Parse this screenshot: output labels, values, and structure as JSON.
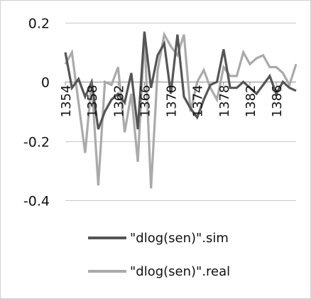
{
  "chart_data": {
    "type": "line",
    "title": "",
    "xlabel": "",
    "ylabel": "",
    "ylim": [
      -0.4,
      0.2
    ],
    "y_ticks": [
      "0.2",
      "0",
      "-0.2",
      "-0.4"
    ],
    "y_tick_values": [
      0.2,
      0,
      -0.2,
      -0.4
    ],
    "x_tick_labels": [
      "1354",
      "1358",
      "1362",
      "1366",
      "1370",
      "1374",
      "1378",
      "1382",
      "1386"
    ],
    "x_tick_values": [
      1354,
      1358,
      1362,
      1366,
      1370,
      1374,
      1378,
      1382,
      1386
    ],
    "grid": "horizontal",
    "legend_position": "bottom",
    "x": [
      1354,
      1355,
      1356,
      1357,
      1358,
      1359,
      1360,
      1361,
      1362,
      1363,
      1364,
      1365,
      1366,
      1367,
      1368,
      1369,
      1370,
      1371,
      1372,
      1373,
      1374,
      1375,
      1376,
      1377,
      1378,
      1379,
      1380,
      1381,
      1382,
      1383,
      1384,
      1385,
      1386,
      1387,
      1388,
      1389
    ],
    "series": [
      {
        "name": "\"dlog(sen)\".sim",
        "color": "#555555",
        "values": [
          0.1,
          -0.02,
          0.01,
          -0.05,
          0.0,
          -0.16,
          -0.1,
          -0.06,
          -0.04,
          -0.07,
          0.03,
          -0.16,
          0.17,
          -0.02,
          0.09,
          0.13,
          -0.04,
          0.16,
          -0.05,
          -0.09,
          -0.12,
          -0.06,
          -0.01,
          0.0,
          0.11,
          -0.02,
          -0.02,
          0.0,
          -0.02,
          -0.04,
          -0.01,
          0.02,
          -0.04,
          0.0,
          -0.02,
          -0.03
        ]
      },
      {
        "name": "\"dlog(sen)\".real",
        "color": "#aaaaaa",
        "values": [
          0.06,
          0.1,
          -0.07,
          -0.24,
          0.0,
          -0.35,
          0.0,
          -0.01,
          0.05,
          -0.17,
          -0.04,
          -0.27,
          0.16,
          -0.36,
          0.04,
          0.16,
          0.12,
          0.09,
          0.16,
          -0.1,
          0.0,
          0.04,
          -0.02,
          -0.06,
          0.05,
          0.02,
          0.02,
          0.1,
          0.06,
          0.08,
          0.09,
          0.05,
          0.05,
          0.03,
          -0.01,
          0.06
        ]
      }
    ]
  }
}
